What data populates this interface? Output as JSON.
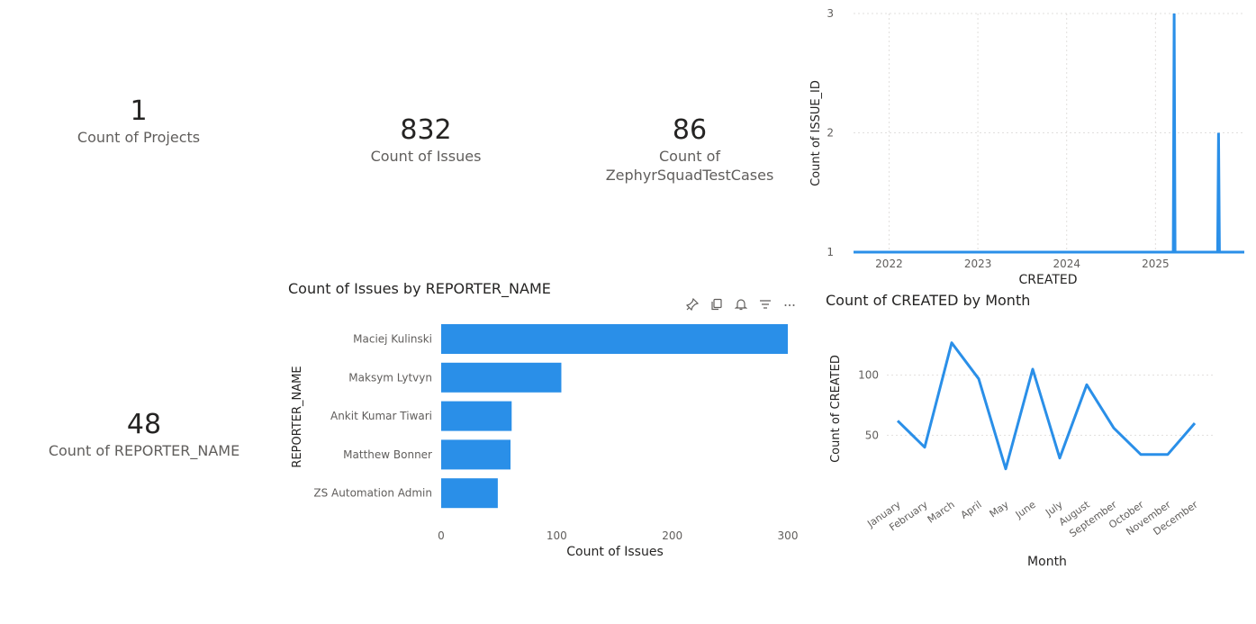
{
  "kpis": {
    "projects": {
      "value": "1",
      "label": "Count of Projects"
    },
    "issues": {
      "value": "832",
      "label": "Count of Issues"
    },
    "zephyr": {
      "value": "86",
      "label_line1": "Count of",
      "label_line2": "ZephyrSquadTestCases"
    },
    "reporters": {
      "value": "48",
      "label": "Count of REPORTER_NAME"
    }
  },
  "accent_color": "#2a8fe8",
  "toolbar": {
    "icons": [
      "pin-icon",
      "copy-icon",
      "bell-icon",
      "filter-icon",
      "more-options-icon"
    ]
  },
  "charts": {
    "timeline": {
      "ylabel": "Count of ISSUE_ID",
      "xlabel": "CREATED",
      "y_ticks": [
        "1",
        "2",
        "3"
      ],
      "x_ticks": [
        "2022",
        "2023",
        "2024",
        "2025"
      ]
    },
    "reporter": {
      "title": "Count of Issues by REPORTER_NAME",
      "ylabel": "REPORTER_NAME",
      "xlabel": "Count of Issues",
      "x_ticks": [
        "0",
        "100",
        "200",
        "300"
      ]
    },
    "month": {
      "title": "Count of CREATED by Month",
      "ylabel": "Count of CREATED",
      "xlabel": "Month",
      "y_ticks": [
        "50",
        "100"
      ]
    }
  },
  "chart_data": [
    {
      "id": "timeline",
      "type": "line",
      "xlabel": "CREATED",
      "ylabel": "Count of ISSUE_ID",
      "xlim": [
        2021.6,
        2026.0
      ],
      "ylim": [
        1,
        3
      ],
      "x": [
        2021.6,
        2025.2,
        2025.21,
        2025.22,
        2025.7,
        2025.71,
        2025.72,
        2026.0
      ],
      "y": [
        1,
        1,
        3,
        1,
        1,
        2,
        1,
        1
      ],
      "grid": true
    },
    {
      "id": "reporter",
      "type": "bar",
      "orientation": "horizontal",
      "title": "Count of Issues by REPORTER_NAME",
      "xlabel": "Count of Issues",
      "ylabel": "REPORTER_NAME",
      "categories": [
        "Maciej Kulinski",
        "Maksym Lytvyn",
        "Ankit Kumar Tiwari",
        "Matthew Bonner",
        "ZS Automation Admin"
      ],
      "values": [
        300,
        104,
        61,
        60,
        49
      ],
      "xlim": [
        0,
        300
      ]
    },
    {
      "id": "month",
      "type": "line",
      "title": "Count of CREATED by Month",
      "xlabel": "Month",
      "ylabel": "Count of CREATED",
      "categories": [
        "January",
        "February",
        "March",
        "April",
        "May",
        "June",
        "July",
        "August",
        "September",
        "October",
        "November",
        "December"
      ],
      "values": [
        62,
        40,
        127,
        97,
        22,
        105,
        31,
        92,
        56,
        34,
        34,
        60
      ],
      "ylim": [
        0,
        135
      ]
    }
  ]
}
